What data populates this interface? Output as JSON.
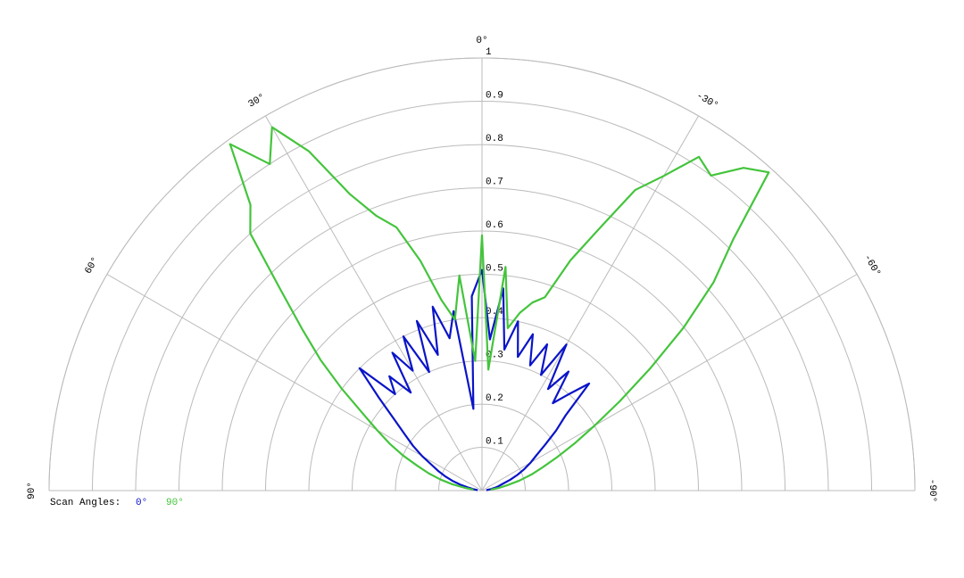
{
  "chart_data": {
    "type": "polar",
    "rlim": [
      0,
      1
    ],
    "rticks": [
      0.1,
      0.2,
      0.3,
      0.4,
      0.5,
      0.6,
      0.7,
      0.8,
      0.9,
      1.0
    ],
    "thetalim": [
      -90,
      90
    ],
    "thetaticks": [
      {
        "value": 90,
        "label": "90°"
      },
      {
        "value": 60,
        "label": "60°"
      },
      {
        "value": 30,
        "label": "30°"
      },
      {
        "value": 0,
        "label": "0°"
      },
      {
        "value": -30,
        "label": "-30°"
      },
      {
        "value": -60,
        "label": "-60°"
      },
      {
        "value": -90,
        "label": "-90°"
      }
    ],
    "legend_title": "Scan Angles:",
    "x": [
      84,
      81,
      78,
      75,
      72,
      69,
      66,
      63,
      60,
      57,
      54,
      51,
      48,
      45,
      42,
      39,
      36,
      33,
      30,
      27,
      24,
      21,
      18,
      15,
      12,
      9,
      6,
      3,
      0,
      -3,
      -6,
      -9,
      -12,
      -15,
      -18,
      -21,
      -24,
      -27,
      -30,
      -33,
      -36,
      -39,
      -42,
      -45,
      -48,
      -51,
      -54,
      -57,
      -60,
      -63,
      -66,
      -69,
      -72,
      -75,
      -78,
      -81,
      -84
    ],
    "series": [
      {
        "name": "0°",
        "color": "#0a14c8",
        "values": [
          0.01,
          0.02,
          0.03,
          0.05,
          0.07,
          0.09,
          0.11,
          0.13,
          0.16,
          0.19,
          0.22,
          0.26,
          0.32,
          0.4,
          0.3,
          0.34,
          0.28,
          0.38,
          0.32,
          0.4,
          0.3,
          0.42,
          0.33,
          0.44,
          0.36,
          0.42,
          0.19,
          0.45,
          0.51,
          0.35,
          0.47,
          0.33,
          0.4,
          0.32,
          0.38,
          0.31,
          0.37,
          0.3,
          0.39,
          0.28,
          0.34,
          0.26,
          0.3,
          0.35,
          0.26,
          0.22,
          0.18,
          0.15,
          0.13,
          0.11,
          0.09,
          0.07,
          0.05,
          0.04,
          0.03,
          0.02,
          0.01
        ]
      },
      {
        "name": "90°",
        "color": "#44c43c",
        "values": [
          0.02,
          0.04,
          0.07,
          0.1,
          0.13,
          0.16,
          0.2,
          0.24,
          0.28,
          0.33,
          0.4,
          0.48,
          0.56,
          0.66,
          0.8,
          0.85,
          0.99,
          0.9,
          0.97,
          0.88,
          0.75,
          0.68,
          0.64,
          0.55,
          0.45,
          0.4,
          0.5,
          0.3,
          0.59,
          0.28,
          0.52,
          0.38,
          0.42,
          0.45,
          0.47,
          0.57,
          0.66,
          0.78,
          0.84,
          0.92,
          0.9,
          0.96,
          0.99,
          0.82,
          0.72,
          0.6,
          0.48,
          0.38,
          0.3,
          0.24,
          0.19,
          0.15,
          0.12,
          0.09,
          0.06,
          0.04,
          0.02
        ]
      }
    ]
  }
}
